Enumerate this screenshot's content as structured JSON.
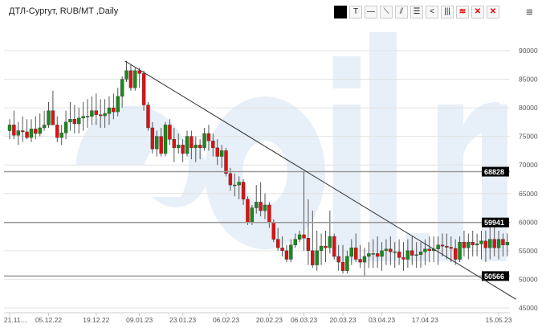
{
  "header": {
    "title": "ДТЛ-Сургут, RUB/MT ,Daily"
  },
  "toolbar": [
    {
      "name": "color-swatch",
      "glyph": ""
    },
    {
      "name": "text-tool",
      "glyph": "T"
    },
    {
      "name": "horizontal-line-tool",
      "glyph": "—"
    },
    {
      "name": "trend-line-tool",
      "glyph": "⟍"
    },
    {
      "name": "parallel-channel-tool",
      "glyph": "⫽"
    },
    {
      "name": "horizontal-lines-tool",
      "glyph": "☰"
    },
    {
      "name": "fan-tool",
      "glyph": "<"
    },
    {
      "name": "vertical-lines-tool",
      "glyph": "|||"
    },
    {
      "name": "layers-tool",
      "glyph": "≋"
    },
    {
      "name": "delete-selected",
      "glyph": "✕"
    },
    {
      "name": "delete-all",
      "glyph": "✕"
    }
  ],
  "menu_icon": "hamburger-menu-icon",
  "watermark": "eoil.ru",
  "colors": {
    "up": "#1a8a1a",
    "down": "#e01010",
    "wick": "#555555",
    "grid": "#e2e2e2",
    "level": "#999999",
    "label_bg": "#000000",
    "watermark": "#e7eff8"
  },
  "chart_data": {
    "type": "candlestick",
    "title": "ДТЛ-Сургут, RUB/MT ,Daily",
    "ylim": [
      45000,
      90000
    ],
    "y_ticks": [
      45000,
      50000,
      55000,
      60000,
      65000,
      70000,
      75000,
      80000,
      85000,
      90000
    ],
    "x_ticks": [
      "21.11....",
      "05.12.22",
      "19.12.22",
      "09.01.23",
      "23.01.23",
      "06.02.23",
      "20.02.23",
      "06.03.23",
      "20.03.23",
      "03.04.23",
      "17.04.23",
      "15.05.23"
    ],
    "x_tick_index": [
      0,
      9,
      20,
      30,
      40,
      50,
      60,
      68,
      77,
      86,
      96,
      113
    ],
    "grid": true,
    "levels": [
      68828,
      59941,
      50566
    ],
    "trendline": {
      "from_index": 27,
      "from_value": 88200,
      "to_index": 117,
      "to_value": 46500
    },
    "candles_ohlc": [
      [
        76000,
        78000,
        74500,
        77000
      ],
      [
        77000,
        79500,
        74500,
        75200
      ],
      [
        75200,
        77500,
        73500,
        76000
      ],
      [
        76000,
        78500,
        74000,
        75800
      ],
      [
        75800,
        78000,
        74500,
        74800
      ],
      [
        74800,
        78000,
        74000,
        76300
      ],
      [
        76300,
        78500,
        74500,
        75500
      ],
      [
        75500,
        79000,
        75000,
        76500
      ],
      [
        76500,
        79500,
        76000,
        77000
      ],
      [
        77000,
        81000,
        76500,
        79500
      ],
      [
        79500,
        83000,
        78000,
        77000
      ],
      [
        77000,
        78500,
        74000,
        74800
      ],
      [
        74800,
        77000,
        73500,
        75600
      ],
      [
        75600,
        79500,
        74500,
        77500
      ],
      [
        77500,
        81000,
        76000,
        78000
      ],
      [
        78000,
        80500,
        75500,
        77200
      ],
      [
        77200,
        80000,
        75500,
        78200
      ],
      [
        78200,
        81000,
        76000,
        78500
      ],
      [
        78500,
        81500,
        76500,
        78500
      ],
      [
        78500,
        82000,
        77000,
        79500
      ],
      [
        79500,
        82500,
        77000,
        78800
      ],
      [
        78800,
        81500,
        76500,
        78600
      ],
      [
        78600,
        81500,
        76500,
        79000
      ],
      [
        79000,
        82000,
        77000,
        80000
      ],
      [
        80000,
        82500,
        78000,
        79300
      ],
      [
        79300,
        83500,
        78500,
        82000
      ],
      [
        82000,
        85500,
        80000,
        85000
      ],
      [
        85000,
        88200,
        84500,
        86500
      ],
      [
        86500,
        87500,
        83000,
        83500
      ],
      [
        83500,
        87000,
        83000,
        86500
      ],
      [
        86500,
        87000,
        83500,
        86000
      ],
      [
        86000,
        86500,
        79500,
        80500
      ],
      [
        80500,
        81000,
        76000,
        76500
      ],
      [
        76500,
        77500,
        72000,
        72800
      ],
      [
        72800,
        76000,
        71500,
        75000
      ],
      [
        75000,
        76500,
        71500,
        72000
      ],
      [
        72000,
        77500,
        71500,
        77000
      ],
      [
        77000,
        78000,
        73500,
        74500
      ],
      [
        74500,
        76500,
        70500,
        73000
      ],
      [
        73000,
        75500,
        72000,
        73500
      ],
      [
        73500,
        74500,
        70500,
        72000
      ],
      [
        72000,
        76000,
        71500,
        75000
      ],
      [
        75000,
        76000,
        71000,
        73000
      ],
      [
        73000,
        75000,
        70500,
        73500
      ],
      [
        73500,
        74500,
        71000,
        73000
      ],
      [
        73000,
        76500,
        72500,
        75500
      ],
      [
        75500,
        77000,
        72500,
        74200
      ],
      [
        74200,
        75500,
        71500,
        73000
      ],
      [
        73000,
        74500,
        70000,
        71500
      ],
      [
        71500,
        73500,
        69500,
        72500
      ],
      [
        72500,
        73000,
        68000,
        68500
      ],
      [
        68500,
        69500,
        65500,
        66500
      ],
      [
        66500,
        68500,
        64500,
        66500
      ],
      [
        66500,
        68000,
        64000,
        67000
      ],
      [
        67000,
        67500,
        63000,
        64000
      ],
      [
        64000,
        64500,
        59500,
        60000
      ],
      [
        60000,
        63000,
        59500,
        62500
      ],
      [
        62500,
        66500,
        61500,
        63500
      ],
      [
        63500,
        67000,
        61000,
        62000
      ],
      [
        62000,
        65000,
        60500,
        63000
      ],
      [
        63000,
        63500,
        59000,
        60000
      ],
      [
        60000,
        60500,
        56500,
        57000
      ],
      [
        57000,
        59000,
        55000,
        55500
      ],
      [
        55500,
        57500,
        54000,
        55000
      ],
      [
        55000,
        56000,
        53000,
        53500
      ],
      [
        53500,
        57000,
        53000,
        56000
      ],
      [
        56000,
        58000,
        55500,
        57000
      ],
      [
        57000,
        58500,
        56500,
        57800
      ],
      [
        57800,
        68828,
        55000,
        57200
      ],
      [
        57200,
        64000,
        52500,
        55000
      ],
      [
        55000,
        62000,
        52000,
        52500
      ],
      [
        52500,
        58500,
        51500,
        55000
      ],
      [
        55000,
        58000,
        52500,
        55800
      ],
      [
        55800,
        58500,
        53000,
        55500
      ],
      [
        55500,
        62000,
        54500,
        57500
      ],
      [
        57500,
        58000,
        53500,
        54000
      ],
      [
        54000,
        56000,
        51500,
        53000
      ],
      [
        53000,
        56000,
        51000,
        51500
      ],
      [
        51500,
        55000,
        51000,
        54000
      ],
      [
        54000,
        57000,
        52500,
        55500
      ],
      [
        55500,
        58000,
        53000,
        53500
      ],
      [
        53500,
        56000,
        52000,
        53000
      ],
      [
        53000,
        55500,
        50566,
        54000
      ],
      [
        54000,
        56500,
        52000,
        54500
      ],
      [
        54500,
        57000,
        52000,
        54500
      ],
      [
        54500,
        57500,
        52000,
        54000
      ],
      [
        54000,
        56500,
        51500,
        55000
      ],
      [
        55000,
        57000,
        52500,
        55300
      ],
      [
        55300,
        57500,
        52500,
        54800
      ],
      [
        54800,
        56500,
        52000,
        54800
      ],
      [
        54800,
        57000,
        52500,
        53800
      ],
      [
        53800,
        56500,
        51500,
        53500
      ],
      [
        53500,
        57000,
        52000,
        55000
      ],
      [
        55000,
        57500,
        52500,
        54200
      ],
      [
        54200,
        56500,
        52000,
        54300
      ],
      [
        54300,
        56500,
        52000,
        54800
      ],
      [
        54800,
        57000,
        52500,
        55300
      ],
      [
        55300,
        57500,
        53000,
        55000
      ],
      [
        55000,
        57500,
        53000,
        55300
      ],
      [
        55300,
        57500,
        52500,
        56000
      ],
      [
        56000,
        58000,
        54000,
        55800
      ],
      [
        55800,
        58000,
        53500,
        55600
      ],
      [
        55600,
        57500,
        53000,
        55400
      ],
      [
        55400,
        57000,
        52500,
        53500
      ],
      [
        53500,
        57500,
        53000,
        56500
      ],
      [
        56500,
        58500,
        54000,
        55500
      ],
      [
        55500,
        58000,
        53500,
        56500
      ],
      [
        56500,
        58500,
        54000,
        56000
      ],
      [
        56000,
        58000,
        54000,
        56200
      ],
      [
        56200,
        58500,
        53500,
        56700
      ],
      [
        56700,
        58500,
        53000,
        55500
      ],
      [
        55500,
        59500,
        53500,
        57000
      ],
      [
        57000,
        60000,
        54000,
        55500
      ],
      [
        55500,
        58500,
        53500,
        57000
      ],
      [
        57000,
        58000,
        54000,
        56000
      ],
      [
        56000,
        58000,
        54000,
        56500
      ]
    ]
  }
}
